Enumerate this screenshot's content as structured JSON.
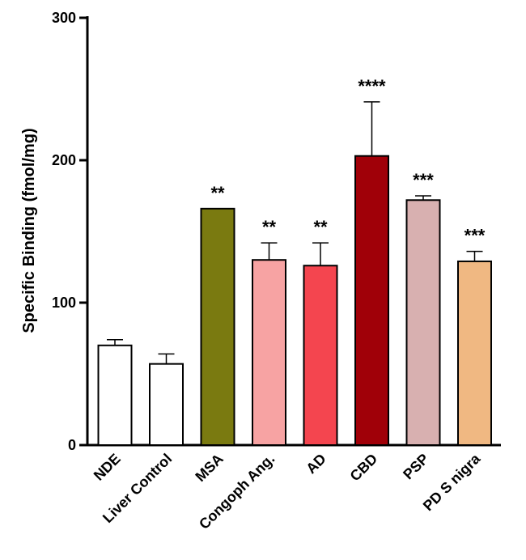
{
  "chart_data": {
    "type": "bar",
    "title": "",
    "xlabel": "",
    "ylabel": "Specific Binding (fmol/mg)",
    "ylim": [
      0,
      300
    ],
    "yticks": [
      0,
      100,
      200,
      300
    ],
    "yticks_text": [
      "0",
      "100",
      "200",
      "300"
    ],
    "categories": [
      "NDE",
      "Liver Control",
      "MSA",
      "Congoph Ang.",
      "AD",
      "CBD",
      "PSP",
      "PD S nigra"
    ],
    "values": [
      70,
      57,
      166,
      130,
      126,
      203,
      172,
      129
    ],
    "errors": [
      4,
      7,
      0,
      12,
      16,
      38,
      3,
      7
    ],
    "colors": [
      "#ffffff",
      "#ffffff",
      "#7a7a10",
      "#f7a3a3",
      "#f4454f",
      "#a00008",
      "#d8b0b0",
      "#f0b882"
    ],
    "significance": [
      "",
      "",
      "**",
      "**",
      "**",
      "****",
      "***",
      "***"
    ]
  }
}
